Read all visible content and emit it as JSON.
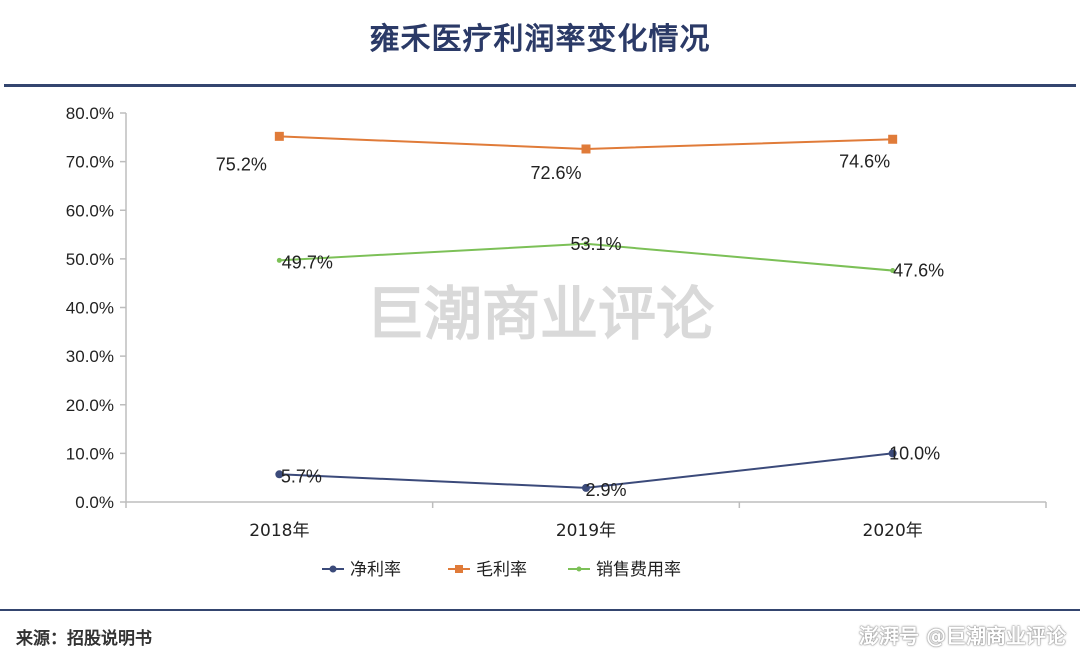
{
  "title": "雍禾医疗利润率变化情况",
  "source": "来源：招股说明书",
  "footer_brand": "澎湃号 @巨潮商业评论",
  "watermark": "巨潮商业评论",
  "colors": {
    "net": "#3b4a7a",
    "gross": "#e07b39",
    "sales": "#7cc057",
    "title": "#2b3a67"
  },
  "chart_data": {
    "type": "line",
    "categories": [
      "2018年",
      "2019年",
      "2020年"
    ],
    "y_ticks": [
      "0.0%",
      "10.0%",
      "20.0%",
      "30.0%",
      "40.0%",
      "50.0%",
      "60.0%",
      "70.0%",
      "80.0%"
    ],
    "ylim": [
      0,
      80
    ],
    "series": [
      {
        "name": "净利率",
        "values": [
          5.7,
          2.9,
          10.0
        ],
        "labels": [
          "5.7%",
          "2.9%",
          "10.0%"
        ],
        "color": "#3b4a7a",
        "marker": "circle"
      },
      {
        "name": "毛利率",
        "values": [
          75.2,
          72.6,
          74.6
        ],
        "labels": [
          "75.2%",
          "72.6%",
          "74.6%"
        ],
        "color": "#e07b39",
        "marker": "square"
      },
      {
        "name": "销售费用率",
        "values": [
          49.7,
          53.1,
          47.6
        ],
        "labels": [
          "49.7%",
          "53.1%",
          "47.6%"
        ],
        "color": "#7cc057",
        "marker": "dot"
      }
    ],
    "legend_position": "bottom",
    "grid": false
  }
}
